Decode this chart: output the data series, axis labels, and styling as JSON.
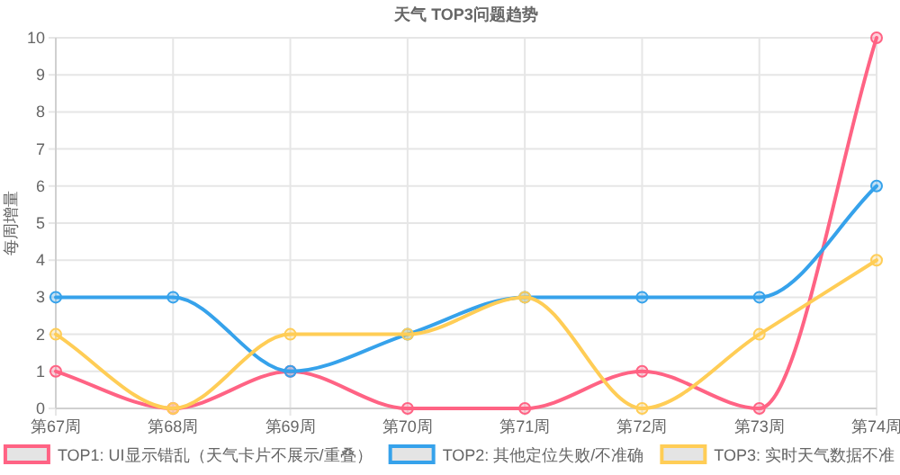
{
  "chart_data": {
    "type": "line",
    "title": "天气 TOP3问题趋势",
    "ylabel": "每周增量",
    "categories": [
      "第67周",
      "第68周",
      "第69周",
      "第70周",
      "第71周",
      "第72周",
      "第73周",
      "第74周"
    ],
    "series": [
      {
        "name": "TOP1: UI显示错乱（天气卡片不展示/重叠）",
        "color": "#ff6384",
        "values": [
          1,
          0,
          1,
          0,
          0,
          1,
          0,
          10
        ]
      },
      {
        "name": "TOP2: 其他定位失败/不准确",
        "color": "#36a2eb",
        "values": [
          3,
          3,
          1,
          2,
          3,
          3,
          3,
          6
        ]
      },
      {
        "name": "TOP3: 实时天气数据不准",
        "color": "#ffcd56",
        "values": [
          2,
          0,
          2,
          2,
          3,
          0,
          2,
          4
        ]
      }
    ],
    "ylim": [
      0,
      10
    ],
    "yticks": [
      0,
      1,
      2,
      3,
      4,
      5,
      6,
      7,
      8,
      9,
      10
    ],
    "grid": true,
    "legend": "bottom",
    "marker": "circle",
    "line_style": "solid"
  }
}
